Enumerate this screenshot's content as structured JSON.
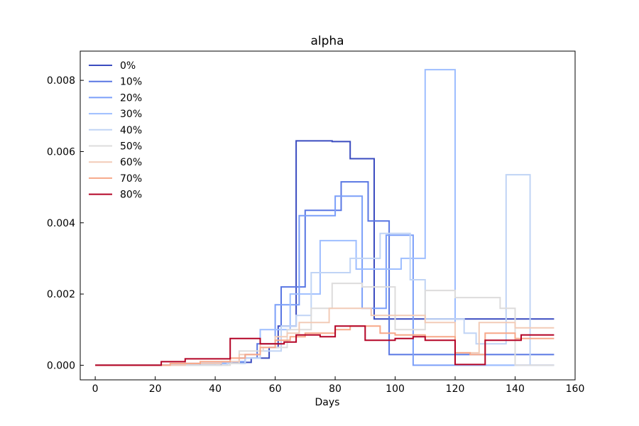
{
  "chart_data": {
    "type": "line",
    "title": "alpha",
    "xlabel": "Days",
    "ylabel": "",
    "xlim": [
      -5,
      160
    ],
    "ylim": [
      -0.00041,
      0.00882
    ],
    "xticks": [
      0,
      20,
      40,
      60,
      80,
      100,
      120,
      140,
      160
    ],
    "xtick_labels": [
      "0",
      "20",
      "40",
      "60",
      "80",
      "100",
      "120",
      "140",
      "160"
    ],
    "yticks": [
      0,
      0.002,
      0.004,
      0.006,
      0.008
    ],
    "ytick_labels": [
      "0.000",
      "0.002",
      "0.004",
      "0.006",
      "0.008"
    ],
    "grid": false,
    "legend_position": "top-left",
    "step": "post",
    "series": [
      {
        "name": "0%",
        "color": "#3b4cc0",
        "x": [
          0,
          42,
          46,
          52,
          58,
          61,
          64,
          67,
          77,
          79,
          85,
          93,
          98,
          153
        ],
        "y": [
          0,
          5e-05,
          8e-05,
          0.0002,
          0.0005,
          0.0011,
          0.0011,
          0.0063,
          0.0063,
          0.00628,
          0.0058,
          0.0013,
          0.0013,
          0.0013
        ]
      },
      {
        "name": "10%",
        "color": "#5977e3",
        "x": [
          0,
          35,
          48,
          54,
          58,
          62,
          65,
          70,
          80,
          82,
          91,
          95,
          98,
          103,
          110,
          153
        ],
        "y": [
          0,
          5e-05,
          0.0002,
          0.0006,
          0.0006,
          0.0022,
          0.0022,
          0.00435,
          0.00435,
          0.00515,
          0.00405,
          0.00405,
          0.0003,
          0.0003,
          0.0003,
          0.0003
        ]
      },
      {
        "name": "20%",
        "color": "#7b9ff9",
        "x": [
          0,
          30,
          45,
          50,
          55,
          60,
          64,
          68,
          72,
          80,
          82,
          89,
          93,
          97,
          106,
          120,
          135,
          153
        ],
        "y": [
          0,
          5e-05,
          0.0001,
          0.0003,
          0.0006,
          0.0017,
          0.0017,
          0.0042,
          0.0042,
          0.00475,
          0.00475,
          0.0016,
          0.0016,
          0.00365,
          0.0,
          0.0,
          0.0,
          0.0
        ]
      },
      {
        "name": "30%",
        "color": "#9ebeff",
        "x": [
          0,
          40,
          50,
          55,
          60,
          65,
          70,
          75,
          80,
          87,
          95,
          102,
          110,
          117,
          120,
          145,
          153
        ],
        "y": [
          0,
          5e-05,
          0.0002,
          0.001,
          0.001,
          0.002,
          0.002,
          0.0035,
          0.0035,
          0.0027,
          0.0027,
          0.003,
          0.0083,
          0.0083,
          0.0,
          0.0,
          0.0
        ]
      },
      {
        "name": "40%",
        "color": "#c0d4f5",
        "x": [
          0,
          44,
          50,
          55,
          58,
          62,
          67,
          72,
          79,
          85,
          90,
          95,
          98,
          105,
          110,
          117,
          123,
          127,
          130,
          135,
          137,
          145
        ],
        "y": [
          0,
          5e-05,
          0.0002,
          0.0004,
          0.0004,
          0.0011,
          0.0014,
          0.0026,
          0.0026,
          0.003,
          0.003,
          0.0037,
          0.0037,
          0.0024,
          0.0013,
          0.0013,
          0.0009,
          0.0006,
          0.0006,
          0.0006,
          0.00535,
          0.0
        ]
      },
      {
        "name": "50%",
        "color": "#dddcdc",
        "x": [
          0,
          45,
          48,
          52,
          56,
          60,
          64,
          68,
          72,
          79,
          85,
          89,
          95,
          100,
          110,
          120,
          128,
          135,
          140,
          153
        ],
        "y": [
          0,
          5e-05,
          0.0004,
          0.0004,
          0.0005,
          0.0005,
          0.001,
          0.001,
          0.0016,
          0.0023,
          0.0023,
          0.0022,
          0.0022,
          0.001,
          0.0021,
          0.0019,
          0.0019,
          0.0016,
          0.0,
          0.0
        ]
      },
      {
        "name": "60%",
        "color": "#f2cbb7",
        "x": [
          0,
          30,
          42,
          48,
          55,
          60,
          64,
          68,
          72,
          78,
          85,
          92,
          96,
          100,
          110,
          120,
          128,
          135,
          140,
          153
        ],
        "y": [
          0,
          5e-05,
          0.0001,
          0.0003,
          0.0006,
          0.0008,
          0.0009,
          0.0012,
          0.0012,
          0.0016,
          0.0016,
          0.0014,
          0.0014,
          0.0014,
          0.0012,
          0.00035,
          0.0012,
          0.0012,
          0.00105,
          0.00105
        ]
      },
      {
        "name": "70%",
        "color": "#f7a889",
        "x": [
          0,
          25,
          35,
          45,
          50,
          55,
          60,
          65,
          70,
          75,
          80,
          85,
          90,
          95,
          100,
          110,
          120,
          125,
          130,
          135,
          140,
          153
        ],
        "y": [
          0,
          5e-05,
          0.0001,
          0.0002,
          0.0003,
          0.0005,
          0.0007,
          0.0008,
          0.0009,
          0.0009,
          0.001,
          0.0011,
          0.0011,
          0.0009,
          0.00085,
          0.0008,
          0.00035,
          0.0003,
          0.0009,
          0.0009,
          0.00075,
          0.00075
        ]
      },
      {
        "name": "80%",
        "color": "#b40426",
        "x": [
          0,
          22,
          30,
          40,
          45,
          55,
          63,
          67,
          75,
          80,
          90,
          95,
          100,
          106,
          110,
          120,
          130,
          135,
          142,
          153
        ],
        "y": [
          0,
          0.0001,
          0.00018,
          0.00018,
          0.00075,
          0.0006,
          0.00065,
          0.00085,
          0.0008,
          0.0011,
          0.0007,
          0.0007,
          0.00075,
          0.0008,
          0.0007,
          2e-05,
          0.0007,
          0.0007,
          0.00085,
          0.00085
        ]
      }
    ]
  }
}
